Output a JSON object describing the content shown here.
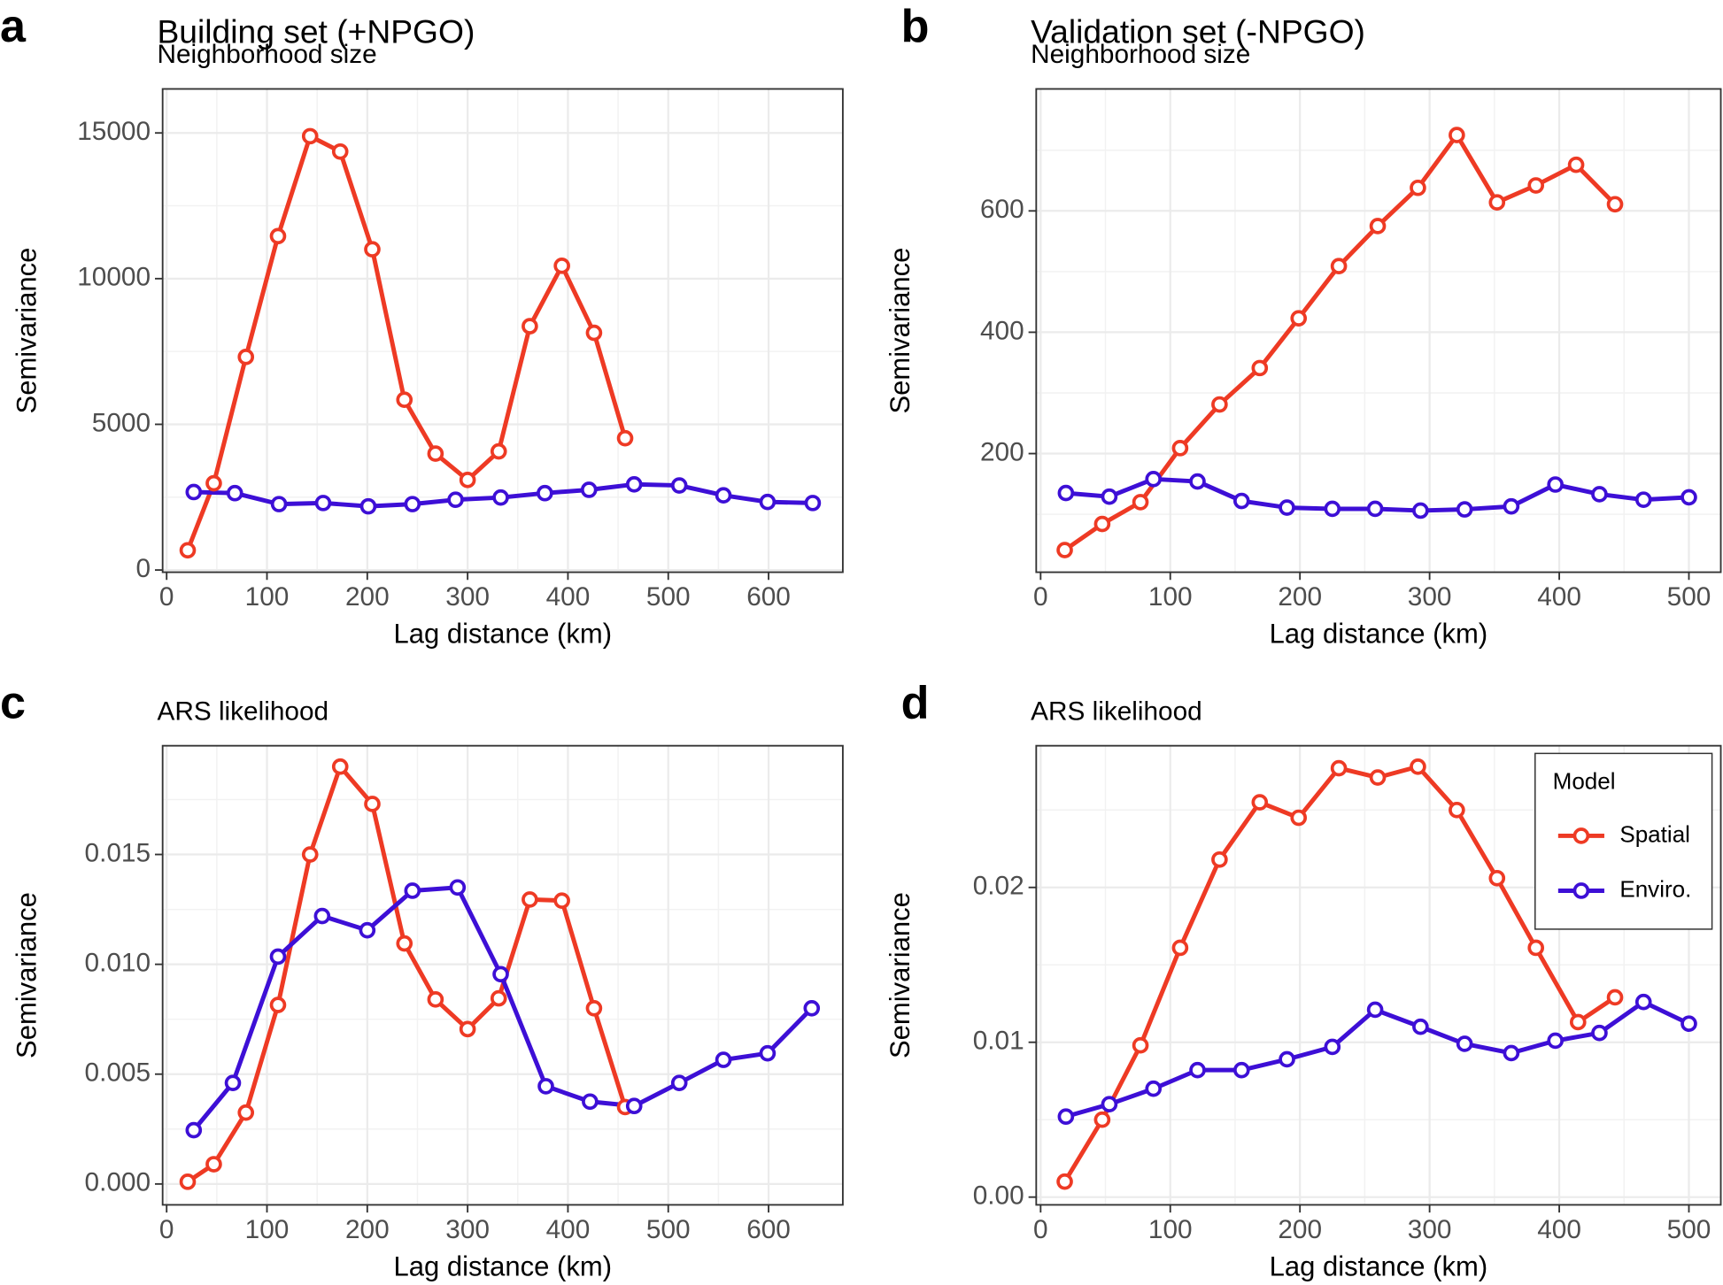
{
  "chart_data": [
    {
      "type": "line",
      "panel": "a",
      "title": "Building set (+NPGO)",
      "subtitle": "Neighborhood size",
      "xlabel": "Lag distance (km)",
      "ylabel": "Semivariance",
      "grid": true,
      "xlim": [
        -4,
        674
      ],
      "ylim": [
        -75,
        16510
      ],
      "xticks": [
        0,
        100,
        200,
        300,
        400,
        500,
        600
      ],
      "yticks": [
        0,
        5000,
        10000,
        15000
      ],
      "series": [
        {
          "name": "Spatial",
          "color": "#ee3a24",
          "x": [
            21,
            47,
            79,
            111,
            143,
            173,
            205,
            237,
            268,
            300,
            331,
            362,
            394,
            426,
            457
          ],
          "values": [
            678,
            2978,
            7312,
            11459,
            14889,
            14361,
            11006,
            5843,
            3995,
            3091,
            4071,
            8367,
            10441,
            8141,
            4523
          ]
        },
        {
          "name": "Enviro.",
          "color": "#3d0fd6",
          "x": [
            27,
            68,
            112,
            156,
            201,
            245,
            288,
            333,
            377,
            421,
            466,
            511,
            555,
            599,
            644
          ],
          "values": [
            2676,
            2638,
            2262,
            2300,
            2186,
            2262,
            2412,
            2488,
            2638,
            2752,
            2940,
            2902,
            2563,
            2337,
            2300
          ]
        }
      ]
    },
    {
      "type": "line",
      "panel": "b",
      "title": "Validation set (-NPGO)",
      "subtitle": "Neighborhood size",
      "xlabel": "Lag distance (km)",
      "ylabel": "Semivariance",
      "grid": true,
      "xlim": [
        -3.4,
        524.6
      ],
      "ylim": [
        4.5,
        801
      ],
      "xticks": [
        0,
        100,
        200,
        300,
        400,
        500
      ],
      "yticks": [
        200,
        400,
        600
      ],
      "series": [
        {
          "name": "Spatial",
          "color": "#ee3a24",
          "x": [
            18.6,
            47.5,
            77,
            107.6,
            138,
            169,
            199,
            230,
            260,
            291,
            321,
            352,
            382,
            413,
            443
          ],
          "values": [
            41,
            84,
            120,
            209,
            281,
            341,
            423,
            509,
            575,
            638,
            725,
            614,
            642,
            676,
            611
          ]
        },
        {
          "name": "Enviro.",
          "color": "#3d0fd6",
          "x": [
            19.5,
            53,
            87,
            121,
            155,
            190,
            225,
            258,
            293,
            327,
            363,
            397,
            431,
            465,
            500
          ],
          "values": [
            135,
            129,
            158,
            154,
            122,
            111,
            109,
            109,
            106,
            108,
            113,
            149,
            133,
            124,
            128
          ]
        }
      ]
    },
    {
      "type": "line",
      "panel": "c",
      "subtitle": "ARS likelihood",
      "xlabel": "Lag distance (km)",
      "ylabel": "Semivariance",
      "grid": true,
      "xlim": [
        -4,
        674
      ],
      "ylim": [
        -0.00095,
        0.01995
      ],
      "xticks": [
        0,
        100,
        200,
        300,
        400,
        500,
        600
      ],
      "yticks": [
        {
          "value": 0,
          "label": "0.000"
        },
        0.005,
        {
          "value": 0.01,
          "label": "0.010"
        },
        0.015
      ],
      "series": [
        {
          "name": "Spatial",
          "color": "#ee3a24",
          "x": [
            21,
            47,
            79,
            111,
            143,
            173,
            205,
            237,
            268,
            300,
            331,
            362,
            394,
            426,
            457
          ],
          "values": [
            0.0001,
            0.0009,
            0.00325,
            0.00815,
            0.015,
            0.019,
            0.0173,
            0.01095,
            0.0084,
            0.00705,
            0.00845,
            0.01295,
            0.0129,
            0.008,
            0.0035
          ]
        },
        {
          "name": "Enviro.",
          "color": "#3d0fd6",
          "x": [
            27,
            66,
            111,
            155,
            200,
            245,
            290,
            333,
            378,
            422,
            466,
            511,
            555,
            599,
            643
          ],
          "values": [
            0.00245,
            0.0046,
            0.01035,
            0.0122,
            0.01155,
            0.01335,
            0.0135,
            0.00955,
            0.00445,
            0.00375,
            0.00355,
            0.0046,
            0.00565,
            0.00595,
            0.008
          ]
        }
      ]
    },
    {
      "type": "line",
      "panel": "d",
      "subtitle": "ARS likelihood",
      "xlabel": "Lag distance (km)",
      "ylabel": "Semivariance",
      "grid": true,
      "xlim": [
        -3.4,
        524.6
      ],
      "ylim": [
        -0.0005,
        0.02915
      ],
      "xticks": [
        0,
        100,
        200,
        300,
        400,
        500
      ],
      "yticks": [
        {
          "value": 0,
          "label": "0.00"
        },
        0.01,
        0.02
      ],
      "legend": "top right",
      "legend_title": "Model",
      "series": [
        {
          "name": "Spatial",
          "color": "#ee3a24",
          "x": [
            18.6,
            47.5,
            77,
            107.6,
            138,
            169,
            199,
            230,
            260,
            291,
            321,
            352,
            382,
            414.5,
            443
          ],
          "values": [
            0.001,
            0.005,
            0.0098,
            0.0161,
            0.0218,
            0.0255,
            0.0245,
            0.0277,
            0.0271,
            0.0278,
            0.025,
            0.0206,
            0.0161,
            0.0113,
            0.0129
          ]
        },
        {
          "name": "Enviro.",
          "color": "#3d0fd6",
          "x": [
            19.5,
            53,
            87,
            121,
            155,
            190,
            225,
            258,
            293,
            327,
            363,
            397,
            431,
            465,
            500
          ],
          "values": [
            0.0052,
            0.006,
            0.007,
            0.0082,
            0.0082,
            0.0089,
            0.0097,
            0.0121,
            0.011,
            0.0099,
            0.0093,
            0.0101,
            0.0106,
            0.0126,
            0.0112
          ]
        }
      ]
    }
  ]
}
